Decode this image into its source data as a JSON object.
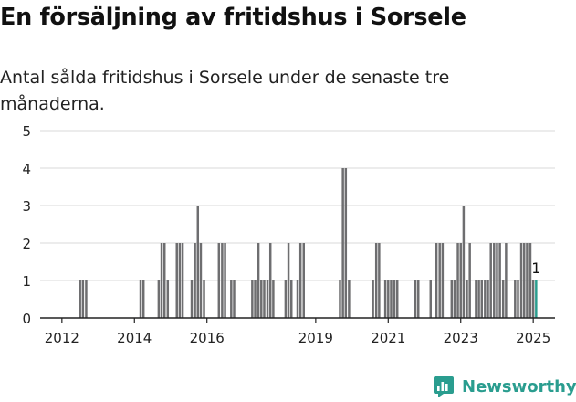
{
  "title": "En försäljning av fritidshus i Sorsele",
  "subtitle": "Antal sålda fritidshus i Sorsele under de senaste tre månaderna.",
  "brand": {
    "name": "Newsworthy",
    "icon": "newsworthy-logo-icon"
  },
  "colors": {
    "bar": "#6e6e70",
    "highlight": "#2a9d8f",
    "grid": "#d9d9d9",
    "axis": "#222222"
  },
  "chart_data": {
    "type": "bar",
    "title": "En försäljning av fritidshus i Sorsele",
    "xlabel": "",
    "ylabel": "",
    "x_start": 2011.4,
    "x_end": 2025.6,
    "ylim": [
      0,
      5
    ],
    "yticks": [
      0,
      1,
      2,
      3,
      4,
      5
    ],
    "xticks": [
      "2012",
      "2014",
      "2016",
      "2019",
      "2021",
      "2023",
      "2025"
    ],
    "grid": true,
    "values": [
      [
        2012.5,
        1
      ],
      [
        2012.58,
        1
      ],
      [
        2012.67,
        1
      ],
      [
        2014.17,
        1
      ],
      [
        2014.25,
        1
      ],
      [
        2014.67,
        1
      ],
      [
        2014.75,
        2
      ],
      [
        2014.83,
        2
      ],
      [
        2014.92,
        1
      ],
      [
        2015.17,
        2
      ],
      [
        2015.25,
        2
      ],
      [
        2015.33,
        2
      ],
      [
        2015.58,
        1
      ],
      [
        2015.67,
        2
      ],
      [
        2015.75,
        3
      ],
      [
        2015.83,
        2
      ],
      [
        2015.92,
        1
      ],
      [
        2016.33,
        2
      ],
      [
        2016.42,
        2
      ],
      [
        2016.5,
        2
      ],
      [
        2016.67,
        1
      ],
      [
        2016.75,
        1
      ],
      [
        2017.25,
        1
      ],
      [
        2017.33,
        1
      ],
      [
        2017.42,
        2
      ],
      [
        2017.5,
        1
      ],
      [
        2017.58,
        1
      ],
      [
        2017.67,
        1
      ],
      [
        2017.75,
        2
      ],
      [
        2017.83,
        1
      ],
      [
        2018.17,
        1
      ],
      [
        2018.25,
        2
      ],
      [
        2018.33,
        1
      ],
      [
        2018.5,
        1
      ],
      [
        2018.58,
        2
      ],
      [
        2018.67,
        2
      ],
      [
        2019.67,
        1
      ],
      [
        2019.75,
        4
      ],
      [
        2019.83,
        4
      ],
      [
        2019.92,
        1
      ],
      [
        2020.58,
        1
      ],
      [
        2020.67,
        2
      ],
      [
        2020.75,
        2
      ],
      [
        2020.92,
        1
      ],
      [
        2021.0,
        1
      ],
      [
        2021.08,
        1
      ],
      [
        2021.17,
        1
      ],
      [
        2021.25,
        1
      ],
      [
        2021.75,
        1
      ],
      [
        2021.83,
        1
      ],
      [
        2022.17,
        1
      ],
      [
        2022.33,
        2
      ],
      [
        2022.42,
        2
      ],
      [
        2022.5,
        2
      ],
      [
        2022.75,
        1
      ],
      [
        2022.83,
        1
      ],
      [
        2022.92,
        2
      ],
      [
        2023.0,
        2
      ],
      [
        2023.08,
        3
      ],
      [
        2023.17,
        1
      ],
      [
        2023.25,
        2
      ],
      [
        2023.42,
        1
      ],
      [
        2023.5,
        1
      ],
      [
        2023.58,
        1
      ],
      [
        2023.67,
        1
      ],
      [
        2023.75,
        1
      ],
      [
        2023.83,
        2
      ],
      [
        2023.92,
        2
      ],
      [
        2024.0,
        2
      ],
      [
        2024.08,
        2
      ],
      [
        2024.17,
        1
      ],
      [
        2024.25,
        2
      ],
      [
        2024.5,
        1
      ],
      [
        2024.58,
        1
      ],
      [
        2024.67,
        2
      ],
      [
        2024.75,
        2
      ],
      [
        2024.83,
        2
      ],
      [
        2024.92,
        2
      ],
      [
        2025.0,
        1
      ]
    ],
    "highlight": {
      "x": 2025.08,
      "value": 1,
      "label": "1"
    }
  }
}
